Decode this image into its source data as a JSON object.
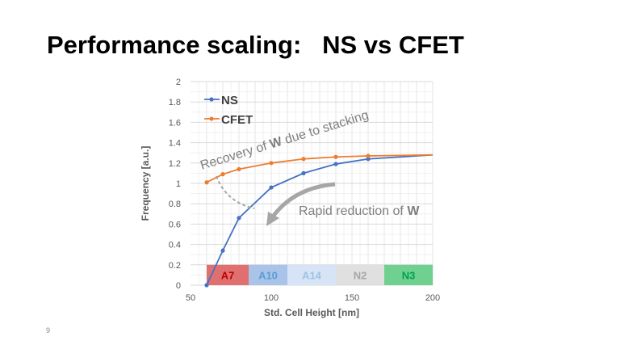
{
  "slide": {
    "title": "Performance scaling:   NS vs CFET",
    "page_number": "9"
  },
  "chart_data": {
    "type": "line",
    "xlabel": "Std. Cell Height [nm]",
    "ylabel": "Frequency [a.u.]",
    "xlim": [
      50,
      200
    ],
    "ylim": [
      0,
      2
    ],
    "xticks": [
      50,
      100,
      150,
      200
    ],
    "yticks": [
      "0",
      "0.2",
      "0.4",
      "0.6",
      "0.8",
      "1",
      "1.2",
      "1.4",
      "1.6",
      "1.8",
      "2"
    ],
    "grid": true,
    "legend": "top-left",
    "series": [
      {
        "name": "NS",
        "color": "#4472C4",
        "x": [
          60,
          70,
          80,
          100,
          120,
          140,
          160,
          200
        ],
        "y": [
          0,
          0.34,
          0.66,
          0.96,
          1.1,
          1.19,
          1.24,
          1.28
        ]
      },
      {
        "name": "CFET",
        "color": "#ED7D31",
        "x": [
          60,
          70,
          80,
          100,
          120,
          140,
          160,
          200
        ],
        "y": [
          1.01,
          1.09,
          1.14,
          1.2,
          1.24,
          1.26,
          1.27,
          1.28
        ]
      }
    ],
    "bands": [
      {
        "label": "A7",
        "from": 60,
        "to": 86,
        "fill": "#E07070",
        "text": "#C00000"
      },
      {
        "label": "A10",
        "from": 86,
        "to": 110,
        "fill": "#A9C4E8",
        "text": "#5B9BD5"
      },
      {
        "label": "A14",
        "from": 110,
        "to": 140,
        "fill": "#D6E4F5",
        "text": "#9DC3E6"
      },
      {
        "label": "N2",
        "from": 140,
        "to": 170,
        "fill": "#E0E0E0",
        "text": "#A6A6A6"
      },
      {
        "label": "N3",
        "from": 170,
        "to": 200,
        "fill": "#70D090",
        "text": "#00A050"
      }
    ],
    "band_height": 0.2,
    "annotations": [
      {
        "text_pre": "Recovery of ",
        "text_bold": "W",
        "text_post": " due to stacking"
      },
      {
        "text_pre": "Rapid reduction of ",
        "text_bold": "W",
        "text_post": ""
      }
    ]
  }
}
